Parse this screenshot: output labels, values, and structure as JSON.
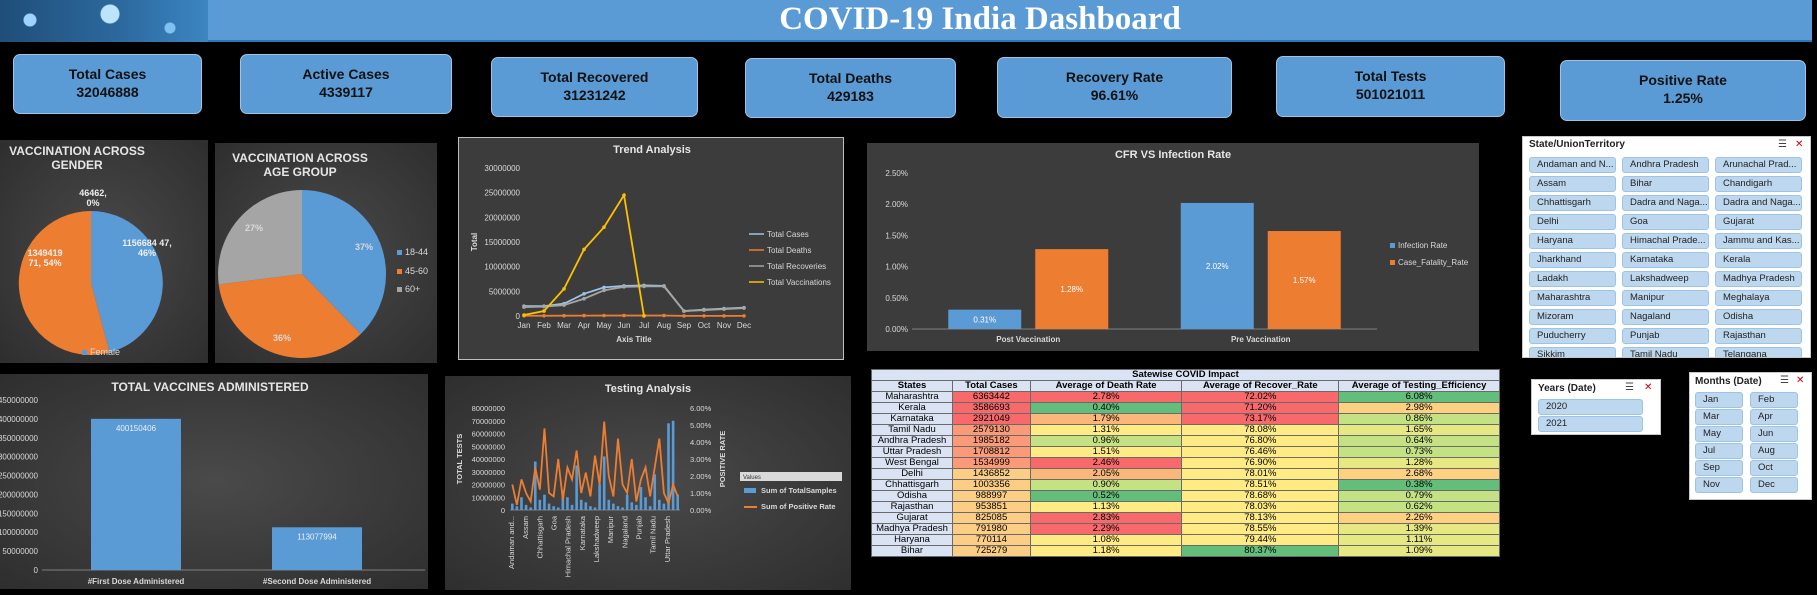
{
  "header": {
    "title": "COVID-19 India Dashboard",
    "banner_image": "virus-banner-image"
  },
  "kpis": [
    {
      "label": "Total Cases",
      "value": "32046888"
    },
    {
      "label": "Active Cases",
      "value": "4339117"
    },
    {
      "label": "Total Recovered",
      "value": "31231242"
    },
    {
      "label": "Total Deaths",
      "value": "429183"
    },
    {
      "label": "Recovery Rate",
      "value": "96.61%"
    },
    {
      "label": "Total Tests",
      "value": "501021011"
    },
    {
      "label": "Positive Rate",
      "value": "1.25%"
    }
  ],
  "vaccination_gender": {
    "title": "VACCINATION ACROSS GENDER",
    "legend": "Female",
    "labels": [
      "1156684 47, 46%",
      "1349419 71, 54%",
      "46462, 0%"
    ],
    "chart_data": {
      "type": "pie",
      "values": [
        46,
        54,
        0
      ],
      "colors": [
        "#5b9bd5",
        "#ed7d31",
        "#a5a5a5"
      ]
    }
  },
  "vaccination_age": {
    "title": "VACCINATION ACROSS AGE GROUP",
    "legend": [
      "18-44",
      "45-60",
      "60+"
    ],
    "labels": [
      "37%",
      "36%",
      "27%"
    ],
    "chart_data": {
      "type": "pie",
      "categories": [
        "18-44",
        "45-60",
        "60+"
      ],
      "values": [
        37,
        36,
        27
      ],
      "colors": [
        "#5b9bd5",
        "#ed7d31",
        "#a5a5a5"
      ]
    }
  },
  "trend": {
    "title": "Trend Analysis",
    "xlabel": "Axis Title",
    "ylabel": "Total",
    "yticks": [
      "30000000",
      "25000000",
      "20000000",
      "15000000",
      "10000000",
      "5000000",
      "0"
    ],
    "chart_data": {
      "type": "line",
      "x": [
        "Jan",
        "Feb",
        "Mar",
        "Apr",
        "May",
        "Jun",
        "Jul",
        "Aug",
        "Sep",
        "Oct",
        "Nov",
        "Dec"
      ],
      "ylim": [
        0,
        30000000
      ],
      "series": [
        {
          "name": "Total Cases",
          "color": "#9dc3e6",
          "values": [
            2000000,
            2000000,
            2500000,
            4500000,
            5800000,
            6100000,
            6200000,
            6100000,
            1000000,
            1300000,
            1500000,
            1700000
          ]
        },
        {
          "name": "Total Deaths",
          "color": "#ed7d31",
          "values": [
            50000,
            50000,
            60000,
            80000,
            100000,
            100000,
            100000,
            100000,
            20000,
            20000,
            25000,
            25000
          ]
        },
        {
          "name": "Total Recoveries",
          "color": "#a5a5a5",
          "values": [
            1800000,
            1900000,
            2200000,
            3500000,
            5200000,
            5900000,
            6000000,
            6000000,
            1000000,
            1200000,
            1400000,
            1600000
          ]
        },
        {
          "name": "Total Vaccinations",
          "color": "#ffc000",
          "values": [
            200000,
            1000000,
            5500000,
            13500000,
            18000000,
            24500000,
            0,
            null,
            null,
            null,
            null,
            null
          ]
        }
      ]
    }
  },
  "cfr": {
    "title": "CFR VS Infection Rate",
    "yticks": [
      "2.50%",
      "2.00%",
      "1.50%",
      "1.00%",
      "0.50%",
      "0.00%"
    ],
    "chart_data": {
      "type": "bar",
      "categories": [
        "Post Vaccination",
        "Pre Vaccination"
      ],
      "ylim": [
        0,
        2.5
      ],
      "series": [
        {
          "name": "Infection Rate",
          "color": "#5b9bd5",
          "values": [
            0.31,
            2.02
          ],
          "labels": [
            "0.31%",
            "2.02%"
          ]
        },
        {
          "name": "Case_Fatality_Rate",
          "color": "#ed7d31",
          "values": [
            1.28,
            1.57
          ],
          "labels": [
            "1.28%",
            "1.57%"
          ]
        }
      ]
    }
  },
  "states_slicer": {
    "title": "State/UnionTerritory",
    "items": [
      "Andaman and N...",
      "Andhra Pradesh",
      "Arunachal Prad...",
      "Assam",
      "Bihar",
      "Chandigarh",
      "Chhattisgarh",
      "Dadra and Naga...",
      "Dadra and Naga...",
      "Delhi",
      "Goa",
      "Gujarat",
      "Haryana",
      "Himachal Prade...",
      "Jammu and Kas...",
      "Jharkhand",
      "Karnataka",
      "Kerala",
      "Ladakh",
      "Lakshadweep",
      "Madhya Pradesh",
      "Maharashtra",
      "Manipur",
      "Meghalaya",
      "Mizoram",
      "Nagaland",
      "Odisha",
      "Puducherry",
      "Punjab",
      "Rajasthan",
      "Sikkim",
      "Tamil Nadu",
      "Telangana"
    ]
  },
  "vaccines": {
    "title": "TOTAL VACCINES ADMINISTERED",
    "yticks": [
      "450000000",
      "400000000",
      "350000000",
      "300000000",
      "250000000",
      "200000000",
      "150000000",
      "100000000",
      "50000000",
      "0"
    ],
    "chart_data": {
      "type": "bar",
      "categories": [
        "#First Dose Administered",
        "#Second Dose Administered"
      ],
      "values": [
        400150406,
        113077994
      ],
      "labels": [
        "400150406",
        "113077994"
      ],
      "ylim": [
        0,
        450000000
      ],
      "color": "#5b9bd5"
    }
  },
  "testing": {
    "title": "Testing Analysis",
    "ylabel_left": "TOTAL TESTS",
    "ylabel_right": "POSITIVE RATE",
    "yticks_left": [
      "80000000",
      "70000000",
      "60000000",
      "50000000",
      "40000000",
      "30000000",
      "20000000",
      "10000000",
      "0"
    ],
    "yticks_right": [
      "6.00%",
      "5.00%",
      "4.00%",
      "3.00%",
      "2.00%",
      "1.00%",
      "0.00%"
    ],
    "xticks": [
      "Andaman and...",
      "Assam",
      "Chhattisgarh",
      "Goa",
      "Himachal Pradesh",
      "Karnataka",
      "Lakshadweep",
      "Manipur",
      "Nagaland",
      "Punjab",
      "Tamil Nadu",
      "Uttar Pradesh"
    ],
    "filter_label": "Values",
    "legend": [
      "Sum of TotalSamples",
      "Sum of Positive Rate"
    ],
    "chart_data": {
      "type": "bar",
      "series": [
        {
          "name": "Sum of TotalSamples",
          "color": "#5b9bd5",
          "values": [
            5,
            3,
            10,
            4,
            2,
            38,
            8,
            12,
            5,
            3,
            2,
            15,
            10,
            4,
            35,
            8,
            6,
            3,
            2,
            20,
            42,
            8,
            5,
            3,
            2,
            12,
            6,
            4,
            18,
            10,
            3,
            28,
            8,
            5,
            68,
            70,
            12
          ]
        },
        {
          "name": "Sum of Positive Rate",
          "color": "#ed7d31",
          "values": [
            1.5,
            0.3,
            1.8,
            1.0,
            0.5,
            2.5,
            1.2,
            4.8,
            1.0,
            0.8,
            3.0,
            0.6,
            2.5,
            1.8,
            3.5,
            1.0,
            2.2,
            0.8,
            3.2,
            1.5,
            5.2,
            2.0,
            0.8,
            4.2,
            1.5,
            1.0,
            3.0,
            0.5,
            1.8,
            2.5,
            0.8,
            2.5,
            4.2,
            1.0,
            0.4,
            1.5,
            0.8
          ]
        }
      ]
    }
  },
  "impact_table": {
    "title": "Satewise COVID Impact",
    "headers": [
      "States",
      "Total Cases",
      "Average of Death Rate",
      "Average of Recover_Rate",
      "Average of Testing_Efficiency"
    ],
    "rows": [
      [
        "Maharashtra",
        "6363442",
        "2.78%",
        "72.02%",
        "6.08%"
      ],
      [
        "Kerala",
        "3586693",
        "0.40%",
        "71.20%",
        "2.98%"
      ],
      [
        "Karnataka",
        "2921049",
        "1.79%",
        "73.17%",
        "0.86%"
      ],
      [
        "Tamil Nadu",
        "2579130",
        "1.31%",
        "78.08%",
        "1.65%"
      ],
      [
        "Andhra Pradesh",
        "1985182",
        "0.96%",
        "76.80%",
        "0.64%"
      ],
      [
        "Uttar Pradesh",
        "1708812",
        "1.51%",
        "76.46%",
        "0.73%"
      ],
      [
        "West Bengal",
        "1534999",
        "2.46%",
        "76.90%",
        "1.28%"
      ],
      [
        "Delhi",
        "1436852",
        "2.05%",
        "78.01%",
        "2.68%"
      ],
      [
        "Chhattisgarh",
        "1003356",
        "0.90%",
        "78.51%",
        "0.38%"
      ],
      [
        "Odisha",
        "988997",
        "0.52%",
        "78.68%",
        "0.79%"
      ],
      [
        "Rajasthan",
        "953851",
        "1.13%",
        "78.03%",
        "0.62%"
      ],
      [
        "Gujarat",
        "825085",
        "2.83%",
        "78.13%",
        "2.26%"
      ],
      [
        "Madhya Pradesh",
        "791980",
        "2.29%",
        "78.55%",
        "1.39%"
      ],
      [
        "Haryana",
        "770114",
        "1.08%",
        "79.44%",
        "1.11%"
      ],
      [
        "Bihar",
        "725279",
        "1.18%",
        "80.37%",
        "1.09%"
      ]
    ],
    "cell_colors": [
      [
        "r",
        "r",
        "g"
      ],
      [
        "g",
        "r",
        "yo"
      ],
      [
        "o",
        "r",
        "lg"
      ],
      [
        "y",
        "y",
        "yg"
      ],
      [
        "lg",
        "y",
        "lg"
      ],
      [
        "y",
        "y",
        "lg"
      ],
      [
        "r",
        "y",
        "yg"
      ],
      [
        "o",
        "y",
        "yo"
      ],
      [
        "lg",
        "y",
        "g"
      ],
      [
        "g",
        "y",
        "lg"
      ],
      [
        "y",
        "y",
        "lg"
      ],
      [
        "r",
        "y",
        "yo"
      ],
      [
        "r",
        "y",
        "yg"
      ],
      [
        "y",
        "y",
        "yg"
      ],
      [
        "y",
        "g",
        "yg"
      ]
    ]
  },
  "years_slicer": {
    "title": "Years (Date)",
    "items": [
      "2020",
      "2021"
    ]
  },
  "months_slicer": {
    "title": "Months (Date)",
    "items": [
      "Jan",
      "Feb",
      "Mar",
      "Apr",
      "May",
      "Jun",
      "Jul",
      "Aug",
      "Sep",
      "Oct",
      "Nov",
      "Dec"
    ]
  },
  "slicer_icons": {
    "multi_select": "multi-select-icon",
    "clear_filter": "clear-filter-icon"
  }
}
